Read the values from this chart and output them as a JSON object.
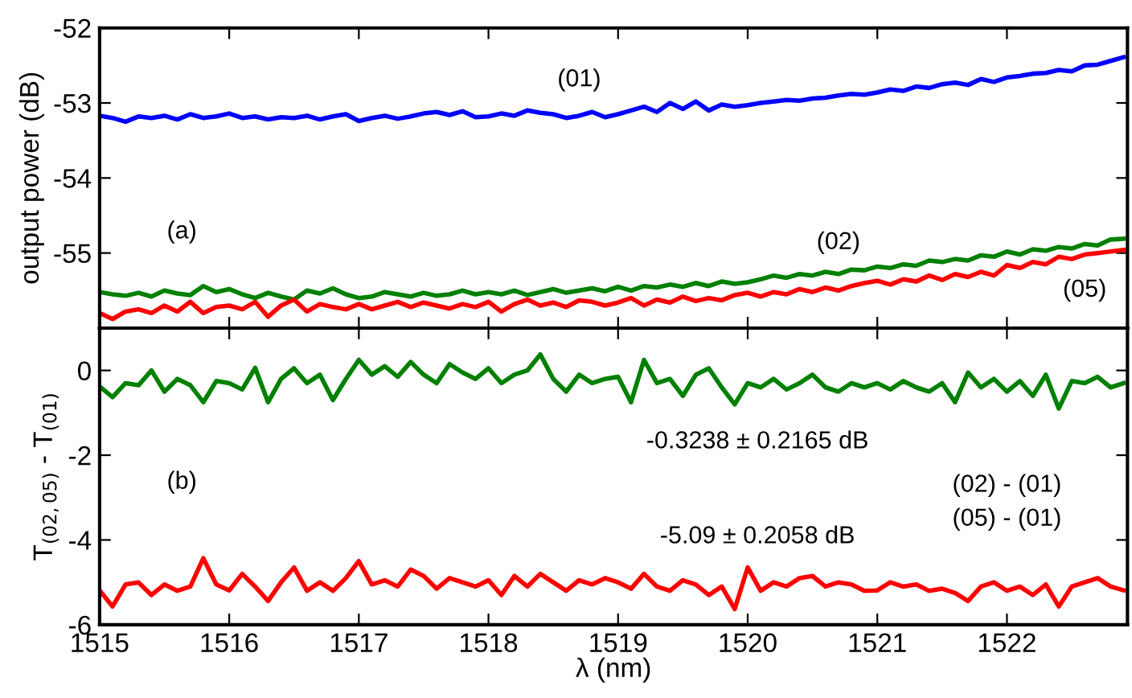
{
  "chart_data": [
    {
      "type": "line",
      "ylabel": "output power (dB)",
      "tick_labels": "y",
      "grid": false,
      "marker": "none",
      "line_style": "solid",
      "xlim": [
        1515,
        1522.93
      ],
      "ylim": [
        -56,
        -52
      ],
      "xticks": [
        1515,
        1516,
        1517,
        1518,
        1519,
        1520,
        1521,
        1522
      ],
      "yticks": [
        -52,
        -53,
        -54,
        -55
      ],
      "x": [
        1515.0,
        1515.1,
        1515.2,
        1515.3,
        1515.4,
        1515.5,
        1515.6,
        1515.7,
        1515.8,
        1515.9,
        1516.0,
        1516.1,
        1516.2,
        1516.3,
        1516.4,
        1516.5,
        1516.6,
        1516.7,
        1516.8,
        1516.9,
        1517.0,
        1517.1,
        1517.2,
        1517.3,
        1517.4,
        1517.5,
        1517.6,
        1517.7,
        1517.8,
        1517.9,
        1518.0,
        1518.1,
        1518.2,
        1518.3,
        1518.4,
        1518.5,
        1518.6,
        1518.7,
        1518.8,
        1518.9,
        1519.0,
        1519.1,
        1519.2,
        1519.3,
        1519.4,
        1519.5,
        1519.6,
        1519.7,
        1519.8,
        1519.9,
        1520.0,
        1520.1,
        1520.2,
        1520.3,
        1520.4,
        1520.5,
        1520.6,
        1520.7,
        1520.8,
        1520.9,
        1521.0,
        1521.1,
        1521.2,
        1521.3,
        1521.4,
        1521.5,
        1521.6,
        1521.7,
        1521.8,
        1521.9,
        1522.0,
        1522.1,
        1522.2,
        1522.3,
        1522.4,
        1522.5,
        1522.6,
        1522.7,
        1522.8,
        1522.9
      ],
      "series": [
        {
          "name": "(01)",
          "color": "#0000ff",
          "values": [
            -53.17,
            -53.2,
            -53.25,
            -53.18,
            -53.2,
            -53.17,
            -53.22,
            -53.15,
            -53.2,
            -53.18,
            -53.14,
            -53.2,
            -53.18,
            -53.22,
            -53.19,
            -53.2,
            -53.17,
            -53.22,
            -53.18,
            -53.15,
            -53.24,
            -53.2,
            -53.17,
            -53.21,
            -53.18,
            -53.14,
            -53.12,
            -53.16,
            -53.11,
            -53.19,
            -53.18,
            -53.14,
            -53.17,
            -53.1,
            -53.13,
            -53.15,
            -53.2,
            -53.17,
            -53.12,
            -53.19,
            -53.15,
            -53.1,
            -53.05,
            -53.12,
            -53.0,
            -53.08,
            -52.98,
            -53.1,
            -53.02,
            -53.05,
            -53.03,
            -53.0,
            -52.98,
            -52.96,
            -52.97,
            -52.94,
            -52.93,
            -52.9,
            -52.88,
            -52.89,
            -52.86,
            -52.82,
            -52.84,
            -52.78,
            -52.8,
            -52.75,
            -52.73,
            -52.76,
            -52.68,
            -52.72,
            -52.66,
            -52.64,
            -52.61,
            -52.6,
            -52.56,
            -52.58,
            -52.5,
            -52.49,
            -52.44,
            -52.39
          ]
        },
        {
          "name": "(02)",
          "color": "#008000",
          "values": [
            -55.52,
            -55.55,
            -55.57,
            -55.53,
            -55.58,
            -55.5,
            -55.54,
            -55.56,
            -55.44,
            -55.52,
            -55.48,
            -55.55,
            -55.6,
            -55.53,
            -55.58,
            -55.62,
            -55.5,
            -55.54,
            -55.47,
            -55.55,
            -55.6,
            -55.58,
            -55.52,
            -55.55,
            -55.58,
            -55.53,
            -55.57,
            -55.55,
            -55.5,
            -55.55,
            -55.52,
            -55.55,
            -55.5,
            -55.56,
            -55.52,
            -55.48,
            -55.53,
            -55.5,
            -55.47,
            -55.51,
            -55.45,
            -55.5,
            -55.44,
            -55.46,
            -55.42,
            -55.45,
            -55.4,
            -55.44,
            -55.38,
            -55.41,
            -55.39,
            -55.35,
            -55.3,
            -55.33,
            -55.28,
            -55.3,
            -55.25,
            -55.28,
            -55.22,
            -55.23,
            -55.18,
            -55.2,
            -55.15,
            -55.17,
            -55.1,
            -55.12,
            -55.08,
            -55.1,
            -55.03,
            -55.05,
            -54.98,
            -55.02,
            -54.95,
            -54.97,
            -54.92,
            -54.94,
            -54.88,
            -54.9,
            -54.82,
            -54.81
          ]
        },
        {
          "name": "(05)",
          "color": "#ff0000",
          "values": [
            -55.8,
            -55.88,
            -55.78,
            -55.75,
            -55.8,
            -55.7,
            -55.78,
            -55.65,
            -55.8,
            -55.72,
            -55.7,
            -55.75,
            -55.65,
            -55.85,
            -55.7,
            -55.62,
            -55.78,
            -55.68,
            -55.72,
            -55.75,
            -55.68,
            -55.75,
            -55.7,
            -55.65,
            -55.72,
            -55.66,
            -55.7,
            -55.74,
            -55.68,
            -55.72,
            -55.65,
            -55.78,
            -55.68,
            -55.62,
            -55.7,
            -55.66,
            -55.72,
            -55.63,
            -55.65,
            -55.7,
            -55.66,
            -55.6,
            -55.7,
            -55.62,
            -55.66,
            -55.58,
            -55.64,
            -55.6,
            -55.63,
            -55.56,
            -55.53,
            -55.58,
            -55.52,
            -55.55,
            -55.48,
            -55.52,
            -55.46,
            -55.5,
            -55.44,
            -55.4,
            -55.37,
            -55.42,
            -55.35,
            -55.38,
            -55.3,
            -55.36,
            -55.28,
            -55.32,
            -55.25,
            -55.3,
            -55.16,
            -55.2,
            -55.12,
            -55.15,
            -55.05,
            -55.08,
            -55.02,
            -55.0,
            -54.98,
            -54.96
          ]
        }
      ],
      "annotations": [
        "(a)"
      ]
    },
    {
      "type": "line",
      "xlabel": "λ (nm)",
      "ylabel": "T$_{(02,05)}$ - T$_{(01)}$",
      "grid": false,
      "marker": "none",
      "line_style": "solid",
      "xlim": [
        1515,
        1522.93
      ],
      "ylim": [
        -6,
        1
      ],
      "xticks": [
        1515,
        1516,
        1517,
        1518,
        1519,
        1520,
        1521,
        1522
      ],
      "yticks": [
        0,
        -2,
        -4,
        -6
      ],
      "x": [
        1515.0,
        1515.1,
        1515.2,
        1515.3,
        1515.4,
        1515.5,
        1515.6,
        1515.7,
        1515.8,
        1515.9,
        1516.0,
        1516.1,
        1516.2,
        1516.3,
        1516.4,
        1516.5,
        1516.6,
        1516.7,
        1516.8,
        1516.9,
        1517.0,
        1517.1,
        1517.2,
        1517.3,
        1517.4,
        1517.5,
        1517.6,
        1517.7,
        1517.8,
        1517.9,
        1518.0,
        1518.1,
        1518.2,
        1518.3,
        1518.4,
        1518.5,
        1518.6,
        1518.7,
        1518.8,
        1518.9,
        1519.0,
        1519.1,
        1519.2,
        1519.3,
        1519.4,
        1519.5,
        1519.6,
        1519.7,
        1519.8,
        1519.9,
        1520.0,
        1520.1,
        1520.2,
        1520.3,
        1520.4,
        1520.5,
        1520.6,
        1520.7,
        1520.8,
        1520.9,
        1521.0,
        1521.1,
        1521.2,
        1521.3,
        1521.4,
        1521.5,
        1521.6,
        1521.7,
        1521.8,
        1521.9,
        1522.0,
        1522.1,
        1522.2,
        1522.3,
        1522.4,
        1522.5,
        1522.6,
        1522.7,
        1522.8,
        1522.9
      ],
      "series": [
        {
          "name": "(02) - (01)",
          "color": "#008000",
          "values": [
            -0.38,
            -0.63,
            -0.3,
            -0.35,
            0.0,
            -0.5,
            -0.2,
            -0.35,
            -0.75,
            -0.25,
            -0.3,
            -0.45,
            0.06,
            -0.75,
            -0.2,
            0.05,
            -0.3,
            -0.1,
            -0.7,
            -0.2,
            0.25,
            -0.1,
            0.1,
            -0.15,
            0.2,
            -0.1,
            -0.3,
            0.15,
            -0.05,
            -0.2,
            0.05,
            -0.3,
            -0.1,
            0.0,
            0.38,
            -0.2,
            -0.5,
            -0.1,
            -0.3,
            -0.2,
            -0.15,
            -0.75,
            0.25,
            -0.3,
            -0.2,
            -0.6,
            -0.1,
            0.05,
            -0.4,
            -0.8,
            -0.3,
            -0.4,
            -0.2,
            -0.45,
            -0.3,
            -0.1,
            -0.4,
            -0.5,
            -0.3,
            -0.4,
            -0.3,
            -0.45,
            -0.25,
            -0.4,
            -0.5,
            -0.3,
            -0.75,
            -0.05,
            -0.4,
            -0.2,
            -0.5,
            -0.25,
            -0.6,
            -0.1,
            -0.9,
            -0.25,
            -0.3,
            -0.15,
            -0.4,
            -0.3
          ]
        },
        {
          "name": "(05) - (01)",
          "color": "#ff0000",
          "values": [
            -5.19,
            -5.57,
            -5.05,
            -5.0,
            -5.3,
            -5.05,
            -5.2,
            -5.1,
            -4.43,
            -5.05,
            -5.19,
            -4.8,
            -5.1,
            -5.44,
            -5.0,
            -4.65,
            -5.2,
            -5.0,
            -5.2,
            -4.9,
            -4.5,
            -5.05,
            -4.95,
            -5.1,
            -4.7,
            -4.85,
            -5.15,
            -4.9,
            -5.0,
            -5.1,
            -4.95,
            -5.3,
            -4.85,
            -5.1,
            -4.8,
            -5.0,
            -5.2,
            -4.95,
            -5.05,
            -4.9,
            -5.0,
            -5.15,
            -4.8,
            -5.1,
            -5.2,
            -4.95,
            -5.05,
            -5.3,
            -5.1,
            -5.63,
            -4.65,
            -5.2,
            -5.0,
            -5.1,
            -4.9,
            -4.85,
            -5.1,
            -5.0,
            -5.05,
            -5.2,
            -5.19,
            -5.0,
            -5.1,
            -5.05,
            -5.2,
            -5.15,
            -5.25,
            -5.44,
            -5.1,
            -5.0,
            -5.2,
            -5.1,
            -5.3,
            -5.05,
            -5.57,
            -5.1,
            -5.0,
            -4.9,
            -5.1,
            -5.19
          ]
        }
      ],
      "annotations": [
        "-0.3238 ± 0.2165 dB",
        "-5.09 ± 0.2058 dB",
        "(b)"
      ]
    }
  ]
}
